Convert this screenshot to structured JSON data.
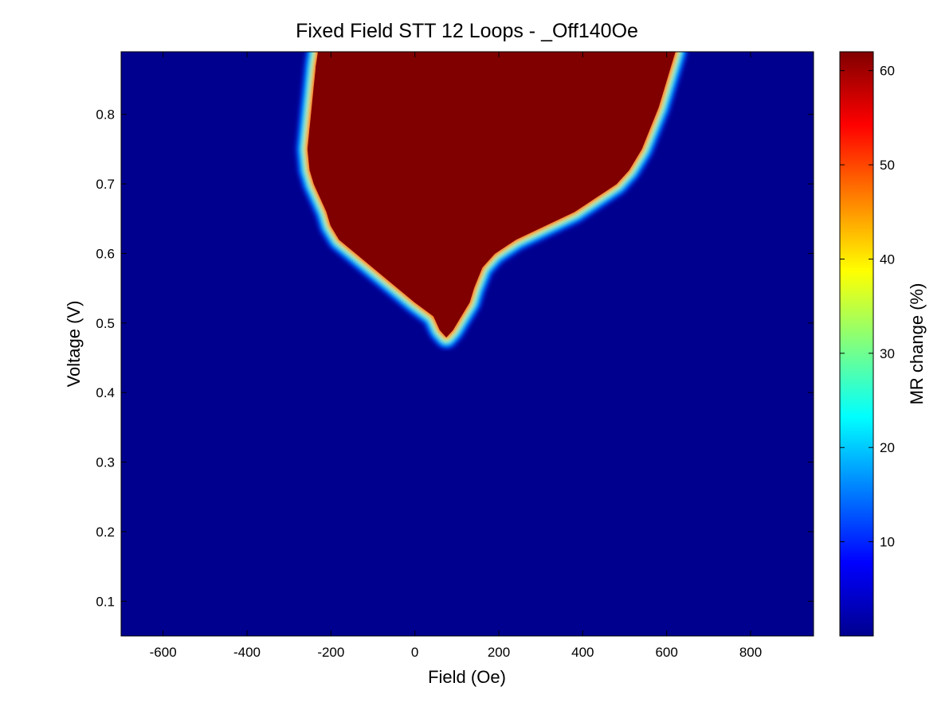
{
  "chart_data": {
    "type": "heatmap",
    "title": "Fixed Field STT 12 Loops - _Off140Oe",
    "xlabel": "Field (Oe)",
    "ylabel": "Voltage (V)",
    "xlim": [
      -700,
      950
    ],
    "ylim": [
      0.05,
      0.89
    ],
    "x_ticks": [
      -600,
      -400,
      -200,
      0,
      200,
      400,
      600,
      800
    ],
    "y_ticks": [
      0.1,
      0.2,
      0.3,
      0.4,
      0.5,
      0.6,
      0.7,
      0.8
    ],
    "colorbar": {
      "label": "MR change (%)",
      "range": [
        0,
        62
      ],
      "ticks": [
        10,
        20,
        30,
        40,
        50,
        60
      ],
      "colormap": "jet"
    },
    "high_mr_region": {
      "description_values": "MR change ~62% inside V-shaped region, ~0% outside",
      "onset_voltage": 0.48,
      "apex_field": 75,
      "boundary": [
        {
          "voltage": 0.49,
          "field_low": 60,
          "field_high": 90
        },
        {
          "voltage": 0.51,
          "field_low": 45,
          "field_high": 110
        },
        {
          "voltage": 0.53,
          "field_low": 0,
          "field_high": 130
        },
        {
          "voltage": 0.55,
          "field_low": -40,
          "field_high": 140
        },
        {
          "voltage": 0.58,
          "field_low": -100,
          "field_high": 160
        },
        {
          "voltage": 0.6,
          "field_low": -140,
          "field_high": 190
        },
        {
          "voltage": 0.62,
          "field_low": -180,
          "field_high": 240
        },
        {
          "voltage": 0.64,
          "field_low": -200,
          "field_high": 310
        },
        {
          "voltage": 0.66,
          "field_low": -210,
          "field_high": 380
        },
        {
          "voltage": 0.68,
          "field_low": -225,
          "field_high": 430
        },
        {
          "voltage": 0.7,
          "field_low": -240,
          "field_high": 480
        },
        {
          "voltage": 0.72,
          "field_low": -250,
          "field_high": 510
        },
        {
          "voltage": 0.75,
          "field_low": -255,
          "field_high": 540
        },
        {
          "voltage": 0.78,
          "field_low": -250,
          "field_high": 560
        },
        {
          "voltage": 0.81,
          "field_low": -245,
          "field_high": 580
        },
        {
          "voltage": 0.84,
          "field_low": -240,
          "field_high": 595
        },
        {
          "voltage": 0.87,
          "field_low": -235,
          "field_high": 610
        },
        {
          "voltage": 0.89,
          "field_low": -230,
          "field_high": 620
        }
      ]
    }
  }
}
